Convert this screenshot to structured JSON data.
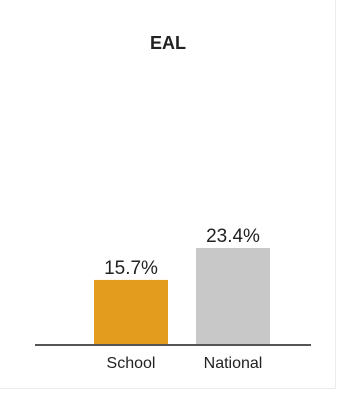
{
  "chart_data": {
    "type": "bar",
    "title": "EAL",
    "categories": [
      "School",
      "National"
    ],
    "values": [
      15.7,
      23.4
    ],
    "value_labels": [
      "15.7%",
      "23.4%"
    ],
    "colors": [
      "#e39c1e",
      "#c8c8c8"
    ],
    "axis_color": "#555555",
    "ylim": [
      0,
      23.4
    ],
    "grid": false,
    "legend": "none"
  }
}
